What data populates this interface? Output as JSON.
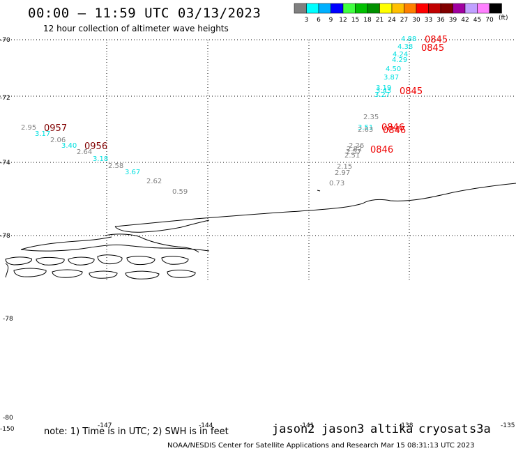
{
  "header": {
    "title": "00:00 – 11:59 UTC 03/13/2023",
    "subtitle": "12 hour collection of altimeter wave heights"
  },
  "legend": {
    "colors": [
      "#808080",
      "#00ffff",
      "#00b0ff",
      "#0000ff",
      "#40ff40",
      "#00c000",
      "#009000",
      "#ffff00",
      "#ffc000",
      "#ff8000",
      "#ff0000",
      "#c00000",
      "#800000",
      "#a000a0",
      "#c0a0ff",
      "#ff80ff",
      "#000000"
    ],
    "labels": [
      "3",
      "6",
      "9",
      "12",
      "15",
      "18",
      "21",
      "24",
      "27",
      "30",
      "33",
      "36",
      "39",
      "42",
      "45",
      "70"
    ],
    "units": "(ft)"
  },
  "axes": {
    "lat_labels": [
      "-70",
      "-72",
      "-74",
      "-78",
      "-78",
      "-80"
    ],
    "lon_labels": [
      "-150",
      "-147",
      "-144",
      "-141",
      "-138",
      "-135"
    ]
  },
  "observations": [
    {
      "text": "4.88",
      "color": "#00e0e0"
    },
    {
      "text": "4.38",
      "color": "#00e0e0"
    },
    {
      "text": "4.24",
      "color": "#00e0e0"
    },
    {
      "text": "4.29",
      "color": "#00e0e0"
    },
    {
      "text": "4.50",
      "color": "#00e0e0"
    },
    {
      "text": "3.87",
      "color": "#00e0e0"
    },
    {
      "text": "3.19",
      "color": "#00e0e0"
    },
    {
      "text": "3.43",
      "color": "#00e0e0"
    },
    {
      "text": "3.27",
      "color": "#00e0e0"
    },
    {
      "text": "2.35",
      "color": "#808080"
    },
    {
      "text": "3.51",
      "color": "#00e0e0"
    },
    {
      "text": "2.63",
      "color": "#808080"
    },
    {
      "text": "2.26",
      "color": "#808080"
    },
    {
      "text": "2.82",
      "color": "#808080"
    },
    {
      "text": "2.57",
      "color": "#808080"
    },
    {
      "text": "2.51",
      "color": "#808080"
    },
    {
      "text": "2.15",
      "color": "#808080"
    },
    {
      "text": "2.97",
      "color": "#808080"
    },
    {
      "text": "0.73",
      "color": "#808080"
    },
    {
      "text": "2.95",
      "color": "#808080"
    },
    {
      "text": "3.17",
      "color": "#00e0e0"
    },
    {
      "text": "2.06",
      "color": "#808080"
    },
    {
      "text": "3.40",
      "color": "#00e0e0"
    },
    {
      "text": "2.64",
      "color": "#808080"
    },
    {
      "text": "3.18",
      "color": "#00e0e0"
    },
    {
      "text": "2.58",
      "color": "#808080"
    },
    {
      "text": "3.67",
      "color": "#00e0e0"
    },
    {
      "text": "2.62",
      "color": "#808080"
    },
    {
      "text": "0.59",
      "color": "#808080"
    }
  ],
  "times": [
    {
      "text": "0845",
      "color": "#ee0000"
    },
    {
      "text": "0845",
      "color": "#ee0000"
    },
    {
      "text": "0845",
      "color": "#ee0000"
    },
    {
      "text": "0846",
      "color": "#ee0000"
    },
    {
      "text": "0846",
      "color": "#ee0000"
    },
    {
      "text": "0846",
      "color": "#ee0000"
    },
    {
      "text": "0957",
      "color": "#800000"
    },
    {
      "text": "0956",
      "color": "#800000"
    }
  ],
  "footer": {
    "note": "note: 1) Time is in UTC; 2) SWH is in feet",
    "satellites": [
      {
        "name": "jason2",
        "color": "#0000ff"
      },
      {
        "name": "jason3",
        "color": "#009000"
      },
      {
        "name": "altika",
        "color": "#ff8000"
      },
      {
        "name": "cryosat",
        "color": "#ff0000"
      },
      {
        "name": "s3a",
        "color": "#800000"
      }
    ],
    "credit": "NOAA/NESDIS Center for Satellite Applications and Research    Mar 15 08:31:13 UTC 2023"
  }
}
